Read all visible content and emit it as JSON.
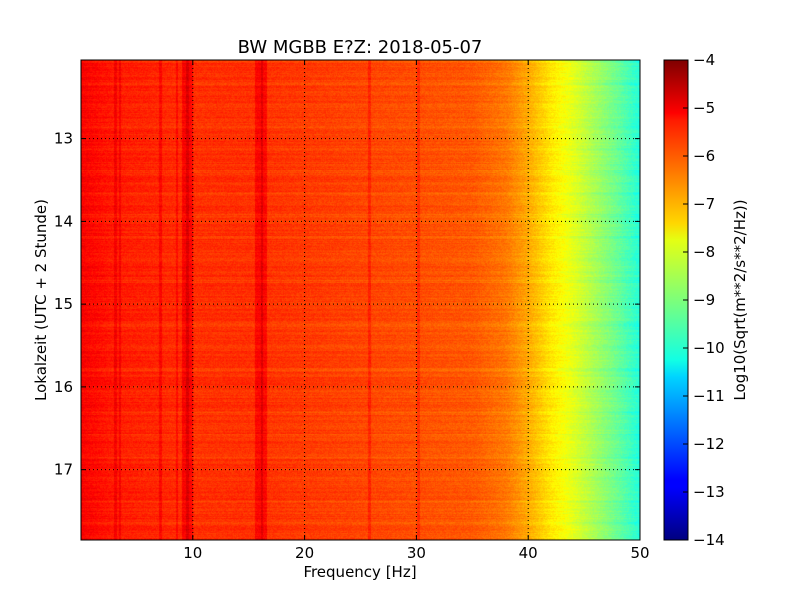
{
  "chart_data": {
    "type": "heatmap",
    "title": "BW MGBB E?Z: 2018-05-07",
    "xlabel": "Frequency [Hz]",
    "ylabel": "Lokalzeit (UTC + 2 Stunde)",
    "xlim": [
      0,
      50
    ],
    "ylim": [
      12.05,
      17.85
    ],
    "y_inverted": true,
    "x_ticks": [
      10,
      20,
      30,
      40,
      50
    ],
    "y_ticks": [
      13,
      14,
      15,
      16,
      17
    ],
    "grid": true,
    "colormap": "jet",
    "colorbar": {
      "label": "Log10(Sqrt(m**2/s**2/Hz))",
      "range": [
        -14,
        -4
      ],
      "ticks": [
        -4,
        -5,
        -6,
        -7,
        -8,
        -9,
        -10,
        -11,
        -12,
        -13,
        -14
      ]
    },
    "spectral_profile": {
      "frequency_hz": [
        0,
        3,
        7,
        10,
        15,
        20,
        25,
        30,
        35,
        38,
        40,
        42,
        44,
        46,
        48,
        50
      ],
      "log10_amplitude": [
        -5.2,
        -5.5,
        -5.6,
        -5.7,
        -5.7,
        -5.8,
        -5.9,
        -6.0,
        -6.1,
        -6.4,
        -6.9,
        -7.5,
        -8.0,
        -8.6,
        -9.2,
        -9.9
      ]
    },
    "spectral_lines_hz": [
      3.1,
      3.5,
      7.1,
      8.6,
      9.5,
      16.2,
      25.8,
      30.2
    ],
    "strong_bands_hz": [
      [
        9.0,
        10.0
      ],
      [
        15.6,
        16.6
      ]
    ]
  }
}
